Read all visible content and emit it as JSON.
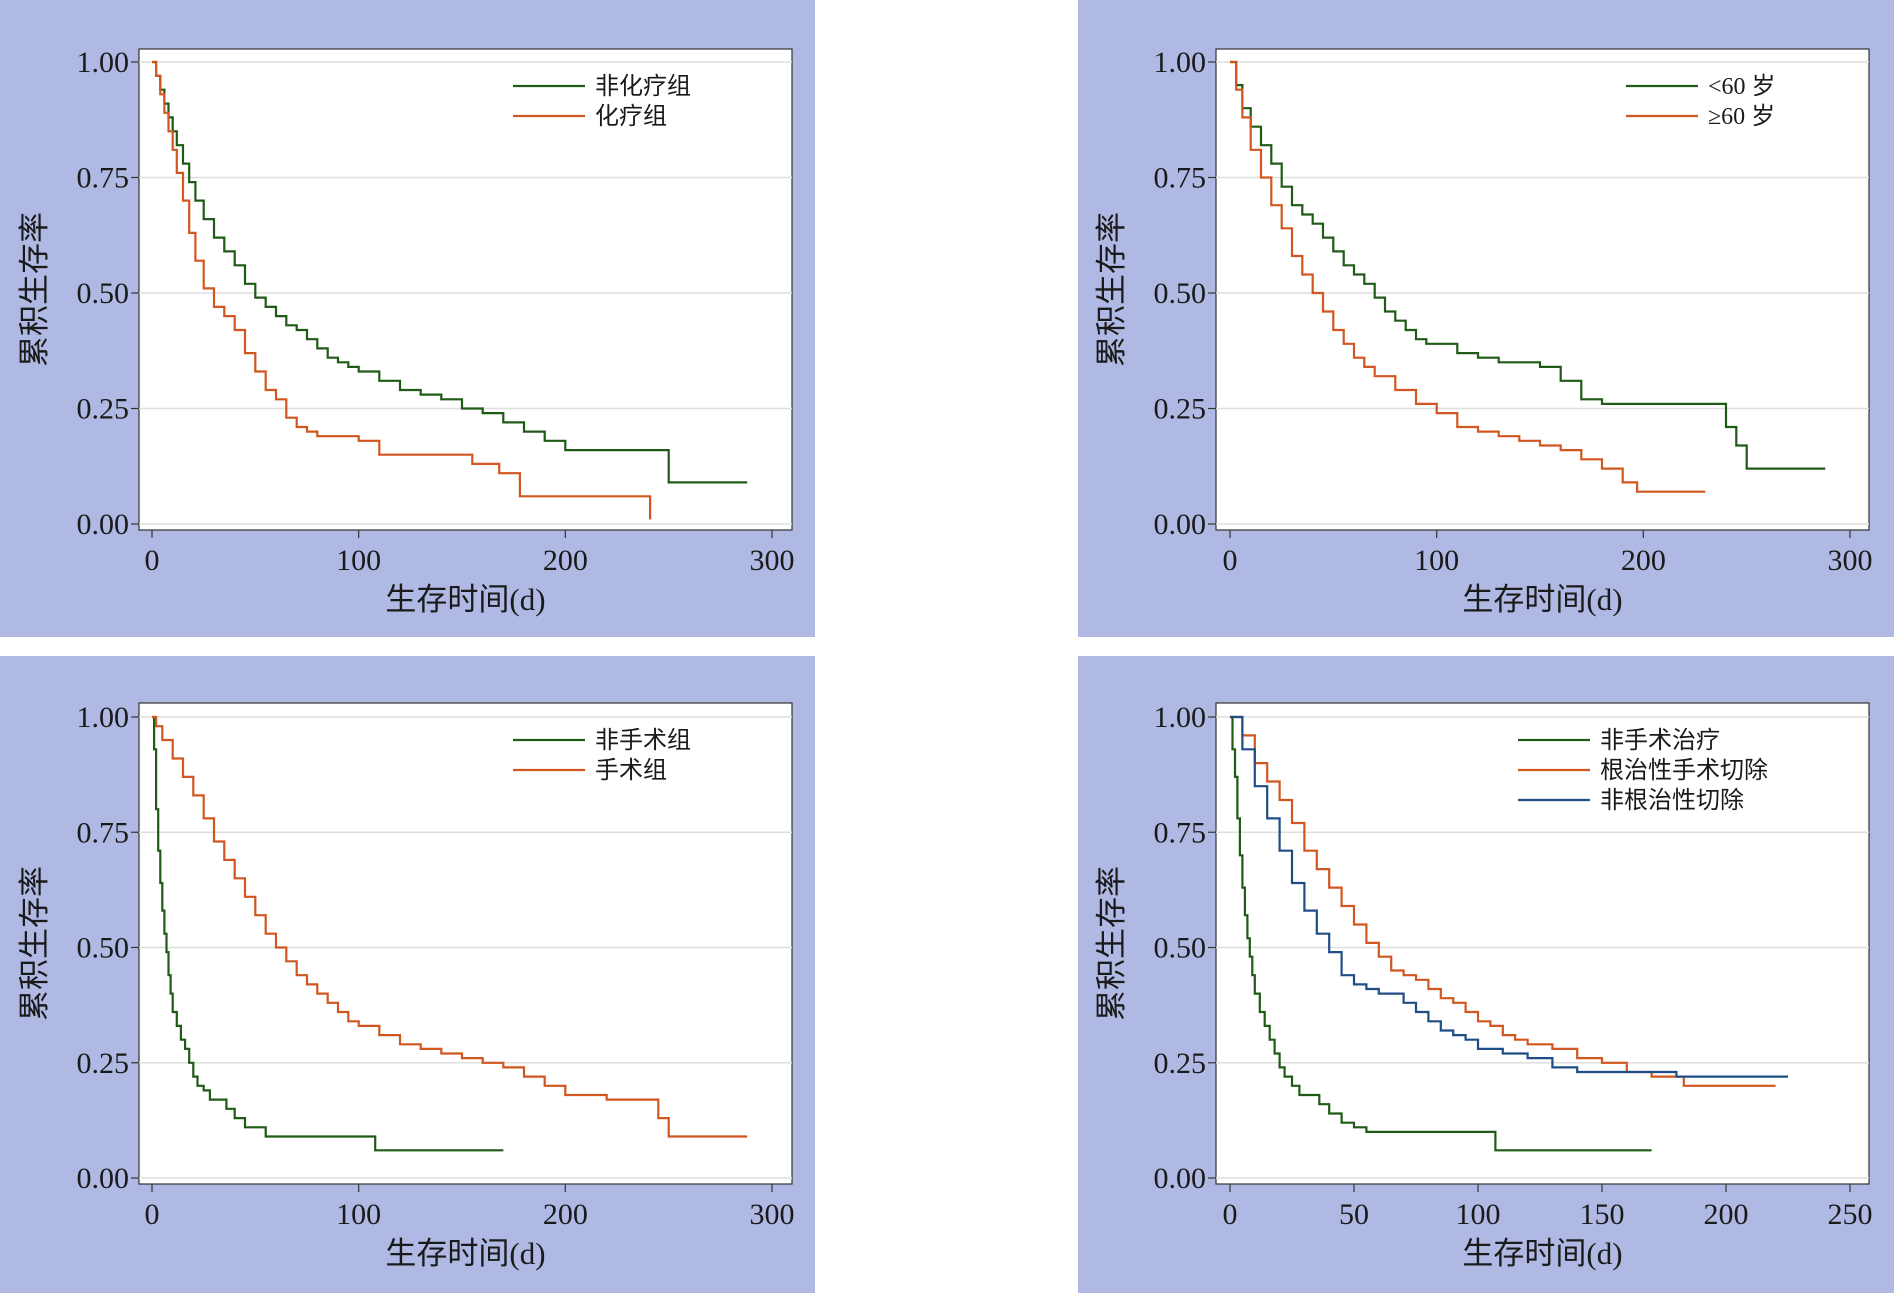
{
  "colors": {
    "panel_background": "#b0b9e3",
    "plot_background": "#ffffff",
    "grid": "#dedede",
    "axis": "#333333",
    "green": "#1f5a16",
    "orange": "#d2561f",
    "blue": "#1f4e86"
  },
  "chart_data": [
    {
      "type": "line",
      "step": true,
      "title": "",
      "xlabel": "生存时间(d)",
      "ylabel": "累积生存率",
      "xlim": [
        0,
        300
      ],
      "ylim": [
        0,
        1
      ],
      "xticks": [
        0,
        100,
        200,
        300
      ],
      "xtick_labels": [
        "0",
        "100",
        "200",
        "300"
      ],
      "yticks": [
        0,
        0.25,
        0.5,
        0.75,
        1
      ],
      "ytick_labels": [
        "0.00",
        "0.25",
        "0.50",
        "0.75",
        "1.00"
      ],
      "grid": true,
      "legend_position": "top-right",
      "series": [
        {
          "name": "非化疗组",
          "color": "#1f5a16",
          "x": [
            0,
            2,
            4,
            6,
            8,
            10,
            12,
            15,
            18,
            21,
            25,
            30,
            35,
            40,
            45,
            50,
            55,
            60,
            65,
            70,
            75,
            80,
            85,
            90,
            95,
            100,
            110,
            120,
            130,
            140,
            150,
            160,
            170,
            180,
            190,
            200,
            220,
            240,
            250,
            260,
            288
          ],
          "y": [
            1.0,
            0.97,
            0.94,
            0.91,
            0.88,
            0.85,
            0.82,
            0.78,
            0.74,
            0.7,
            0.66,
            0.62,
            0.59,
            0.56,
            0.52,
            0.49,
            0.47,
            0.45,
            0.43,
            0.42,
            0.4,
            0.38,
            0.36,
            0.35,
            0.34,
            0.33,
            0.31,
            0.29,
            0.28,
            0.27,
            0.25,
            0.24,
            0.22,
            0.2,
            0.18,
            0.16,
            0.16,
            0.16,
            0.09,
            0.09,
            0.09
          ]
        },
        {
          "name": "化疗组",
          "color": "#d2561f",
          "x": [
            0,
            2,
            4,
            6,
            8,
            10,
            12,
            15,
            18,
            21,
            25,
            30,
            35,
            40,
            45,
            50,
            55,
            60,
            65,
            70,
            75,
            80,
            90,
            100,
            110,
            130,
            155,
            168,
            178,
            200,
            220,
            241
          ],
          "y": [
            1.0,
            0.97,
            0.93,
            0.89,
            0.85,
            0.81,
            0.76,
            0.7,
            0.63,
            0.57,
            0.51,
            0.47,
            0.45,
            0.42,
            0.37,
            0.33,
            0.29,
            0.27,
            0.23,
            0.21,
            0.2,
            0.19,
            0.19,
            0.18,
            0.15,
            0.15,
            0.13,
            0.11,
            0.06,
            0.06,
            0.06,
            0.01
          ]
        }
      ]
    },
    {
      "type": "line",
      "step": true,
      "title": "",
      "xlabel": "生存时间(d)",
      "ylabel": "累积生存率",
      "xlim": [
        0,
        300
      ],
      "ylim": [
        0,
        1
      ],
      "xticks": [
        0,
        100,
        200,
        300
      ],
      "xtick_labels": [
        "0",
        "100",
        "200",
        "300"
      ],
      "yticks": [
        0,
        0.25,
        0.5,
        0.75,
        1
      ],
      "ytick_labels": [
        "0.00",
        "0.25",
        "0.50",
        "0.75",
        "1.00"
      ],
      "grid": true,
      "legend_position": "top-right",
      "series": [
        {
          "name": "<60 岁",
          "color": "#1f5a16",
          "x": [
            0,
            3,
            6,
            10,
            15,
            20,
            25,
            30,
            35,
            40,
            45,
            50,
            55,
            60,
            65,
            70,
            75,
            80,
            85,
            90,
            95,
            100,
            110,
            120,
            130,
            140,
            150,
            160,
            170,
            180,
            190,
            200,
            220,
            240,
            245,
            250,
            260,
            288
          ],
          "y": [
            1.0,
            0.95,
            0.9,
            0.86,
            0.82,
            0.78,
            0.73,
            0.69,
            0.67,
            0.65,
            0.62,
            0.59,
            0.56,
            0.54,
            0.52,
            0.49,
            0.46,
            0.44,
            0.42,
            0.4,
            0.39,
            0.39,
            0.37,
            0.36,
            0.35,
            0.35,
            0.34,
            0.31,
            0.27,
            0.26,
            0.26,
            0.26,
            0.26,
            0.21,
            0.17,
            0.12,
            0.12,
            0.12
          ]
        },
        {
          "name": "≥60 岁",
          "color": "#d2561f",
          "x": [
            0,
            3,
            6,
            10,
            15,
            20,
            25,
            30,
            35,
            40,
            45,
            50,
            55,
            60,
            65,
            70,
            80,
            90,
            100,
            110,
            120,
            130,
            140,
            150,
            160,
            170,
            180,
            190,
            197,
            210,
            230
          ],
          "y": [
            1.0,
            0.94,
            0.88,
            0.81,
            0.75,
            0.69,
            0.64,
            0.58,
            0.54,
            0.5,
            0.46,
            0.42,
            0.39,
            0.36,
            0.34,
            0.32,
            0.29,
            0.26,
            0.24,
            0.21,
            0.2,
            0.19,
            0.18,
            0.17,
            0.16,
            0.14,
            0.12,
            0.09,
            0.07,
            0.07,
            0.07
          ]
        }
      ]
    },
    {
      "type": "line",
      "step": true,
      "title": "",
      "xlabel": "生存时间(d)",
      "ylabel": "累积生存率",
      "xlim": [
        0,
        300
      ],
      "ylim": [
        0,
        1
      ],
      "xticks": [
        0,
        100,
        200,
        300
      ],
      "xtick_labels": [
        "0",
        "100",
        "200",
        "300"
      ],
      "yticks": [
        0,
        0.25,
        0.5,
        0.75,
        1
      ],
      "ytick_labels": [
        "0.00",
        "0.25",
        "0.50",
        "0.75",
        "1.00"
      ],
      "grid": true,
      "legend_position": "top-right",
      "series": [
        {
          "name": "非手术组",
          "color": "#1f5a16",
          "x": [
            0,
            1,
            2,
            3,
            4,
            5,
            6,
            7,
            8,
            9,
            10,
            12,
            14,
            16,
            18,
            20,
            22,
            25,
            28,
            32,
            36,
            40,
            45,
            50,
            55,
            70,
            85,
            100,
            108,
            130,
            150,
            170
          ],
          "y": [
            1.0,
            0.93,
            0.8,
            0.71,
            0.64,
            0.58,
            0.53,
            0.49,
            0.44,
            0.4,
            0.36,
            0.33,
            0.3,
            0.28,
            0.25,
            0.22,
            0.2,
            0.19,
            0.17,
            0.17,
            0.15,
            0.13,
            0.11,
            0.11,
            0.09,
            0.09,
            0.09,
            0.09,
            0.06,
            0.06,
            0.06,
            0.06
          ]
        },
        {
          "name": "手术组",
          "color": "#d2561f",
          "x": [
            0,
            2,
            5,
            10,
            15,
            20,
            25,
            30,
            35,
            40,
            45,
            50,
            55,
            60,
            65,
            70,
            75,
            80,
            85,
            90,
            95,
            100,
            110,
            120,
            130,
            140,
            150,
            160,
            170,
            180,
            190,
            200,
            220,
            240,
            245,
            250,
            260,
            288
          ],
          "y": [
            1.0,
            0.98,
            0.95,
            0.91,
            0.87,
            0.83,
            0.78,
            0.73,
            0.69,
            0.65,
            0.61,
            0.57,
            0.53,
            0.5,
            0.47,
            0.44,
            0.42,
            0.4,
            0.38,
            0.36,
            0.34,
            0.33,
            0.31,
            0.29,
            0.28,
            0.27,
            0.26,
            0.25,
            0.24,
            0.22,
            0.2,
            0.18,
            0.17,
            0.17,
            0.13,
            0.09,
            0.09,
            0.09
          ]
        }
      ]
    },
    {
      "type": "line",
      "step": true,
      "title": "",
      "xlabel": "生存时间(d)",
      "ylabel": "累积生存率",
      "xlim": [
        0,
        250
      ],
      "ylim": [
        0,
        1
      ],
      "xticks": [
        0,
        50,
        100,
        150,
        200,
        250
      ],
      "xtick_labels": [
        "0",
        "50",
        "100",
        "150",
        "200",
        "250"
      ],
      "yticks": [
        0,
        0.25,
        0.5,
        0.75,
        1
      ],
      "ytick_labels": [
        "0.00",
        "0.25",
        "0.50",
        "0.75",
        "1.00"
      ],
      "grid": true,
      "legend_position": "top-right",
      "series": [
        {
          "name": "非手术治疗",
          "color": "#1f5a16",
          "x": [
            0,
            1,
            2,
            3,
            4,
            5,
            6,
            7,
            8,
            9,
            10,
            12,
            14,
            16,
            18,
            20,
            22,
            25,
            28,
            32,
            36,
            40,
            45,
            50,
            55,
            70,
            85,
            100,
            107,
            130,
            150,
            170
          ],
          "y": [
            1.0,
            0.93,
            0.87,
            0.78,
            0.7,
            0.63,
            0.57,
            0.52,
            0.48,
            0.44,
            0.4,
            0.36,
            0.33,
            0.3,
            0.27,
            0.24,
            0.22,
            0.2,
            0.18,
            0.18,
            0.16,
            0.14,
            0.12,
            0.11,
            0.1,
            0.1,
            0.1,
            0.1,
            0.06,
            0.06,
            0.06,
            0.06
          ]
        },
        {
          "name": "根治性手术切除",
          "color": "#d2561f",
          "x": [
            0,
            5,
            10,
            15,
            20,
            25,
            30,
            35,
            40,
            45,
            50,
            55,
            60,
            65,
            70,
            75,
            80,
            85,
            90,
            95,
            100,
            105,
            110,
            115,
            120,
            130,
            140,
            150,
            160,
            170,
            183,
            200,
            220
          ],
          "y": [
            1.0,
            0.96,
            0.9,
            0.86,
            0.82,
            0.77,
            0.71,
            0.67,
            0.63,
            0.59,
            0.55,
            0.51,
            0.48,
            0.45,
            0.44,
            0.43,
            0.41,
            0.39,
            0.38,
            0.36,
            0.34,
            0.33,
            0.31,
            0.3,
            0.29,
            0.28,
            0.26,
            0.25,
            0.23,
            0.22,
            0.2,
            0.2,
            0.2
          ]
        },
        {
          "name": "非根治性切除",
          "color": "#1f4e86",
          "x": [
            0,
            5,
            10,
            15,
            20,
            25,
            30,
            35,
            40,
            45,
            50,
            55,
            60,
            70,
            75,
            80,
            85,
            90,
            95,
            100,
            110,
            120,
            130,
            140,
            150,
            160,
            170,
            180,
            200,
            225
          ],
          "y": [
            1.0,
            0.93,
            0.85,
            0.78,
            0.71,
            0.64,
            0.58,
            0.53,
            0.49,
            0.44,
            0.42,
            0.41,
            0.4,
            0.38,
            0.36,
            0.34,
            0.32,
            0.31,
            0.3,
            0.28,
            0.27,
            0.26,
            0.24,
            0.23,
            0.23,
            0.23,
            0.23,
            0.22,
            0.22,
            0.22
          ]
        }
      ]
    }
  ]
}
